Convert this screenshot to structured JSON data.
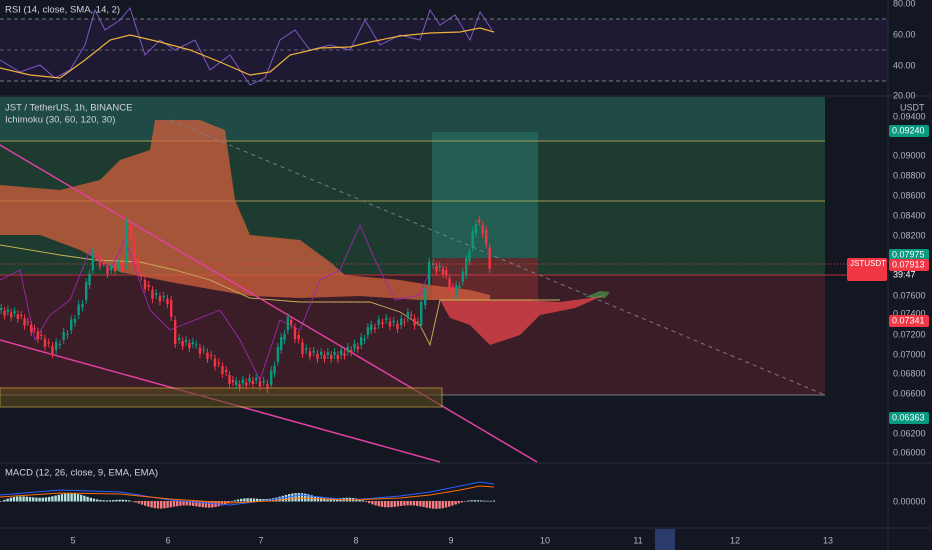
{
  "rsi_pane": {
    "legend": "RSI (14, close, SMA, 14, 2)",
    "axis_labels": [
      "80.00",
      "60.00",
      "40.00",
      "20.00"
    ]
  },
  "main_pane": {
    "symbol": "JST / TetherUS, 1h, BINANCE",
    "indicator": "Ichimoku (30, 60, 120, 30)",
    "currency": "USDT",
    "axis_labels": [
      "0.09400",
      "0.09000",
      "0.08800",
      "0.08600",
      "0.08400",
      "0.08200",
      "0.07600",
      "0.07400",
      "0.07200",
      "0.07000",
      "0.06800",
      "0.06600",
      "0.06200",
      "0.06000"
    ],
    "price_tags": [
      {
        "label": "0.09240",
        "color": "#089981"
      },
      {
        "label": "0.07975",
        "color": "#089981"
      },
      {
        "label": "0.07913",
        "color": "#f23645"
      },
      {
        "label": "0.07341",
        "color": "#f23645"
      },
      {
        "label": "0.06363",
        "color": "#089981"
      }
    ],
    "symbol_tag": "JSTUSDT",
    "countdown": "39:47"
  },
  "macd_pane": {
    "legend": "MACD (12, 26, close, 9, EMA, EMA)",
    "axis_labels": [
      "0.00000"
    ]
  },
  "time_axis": {
    "labels": [
      "5",
      "6",
      "7",
      "8",
      "9",
      "10",
      "11",
      "12",
      "13"
    ]
  }
}
